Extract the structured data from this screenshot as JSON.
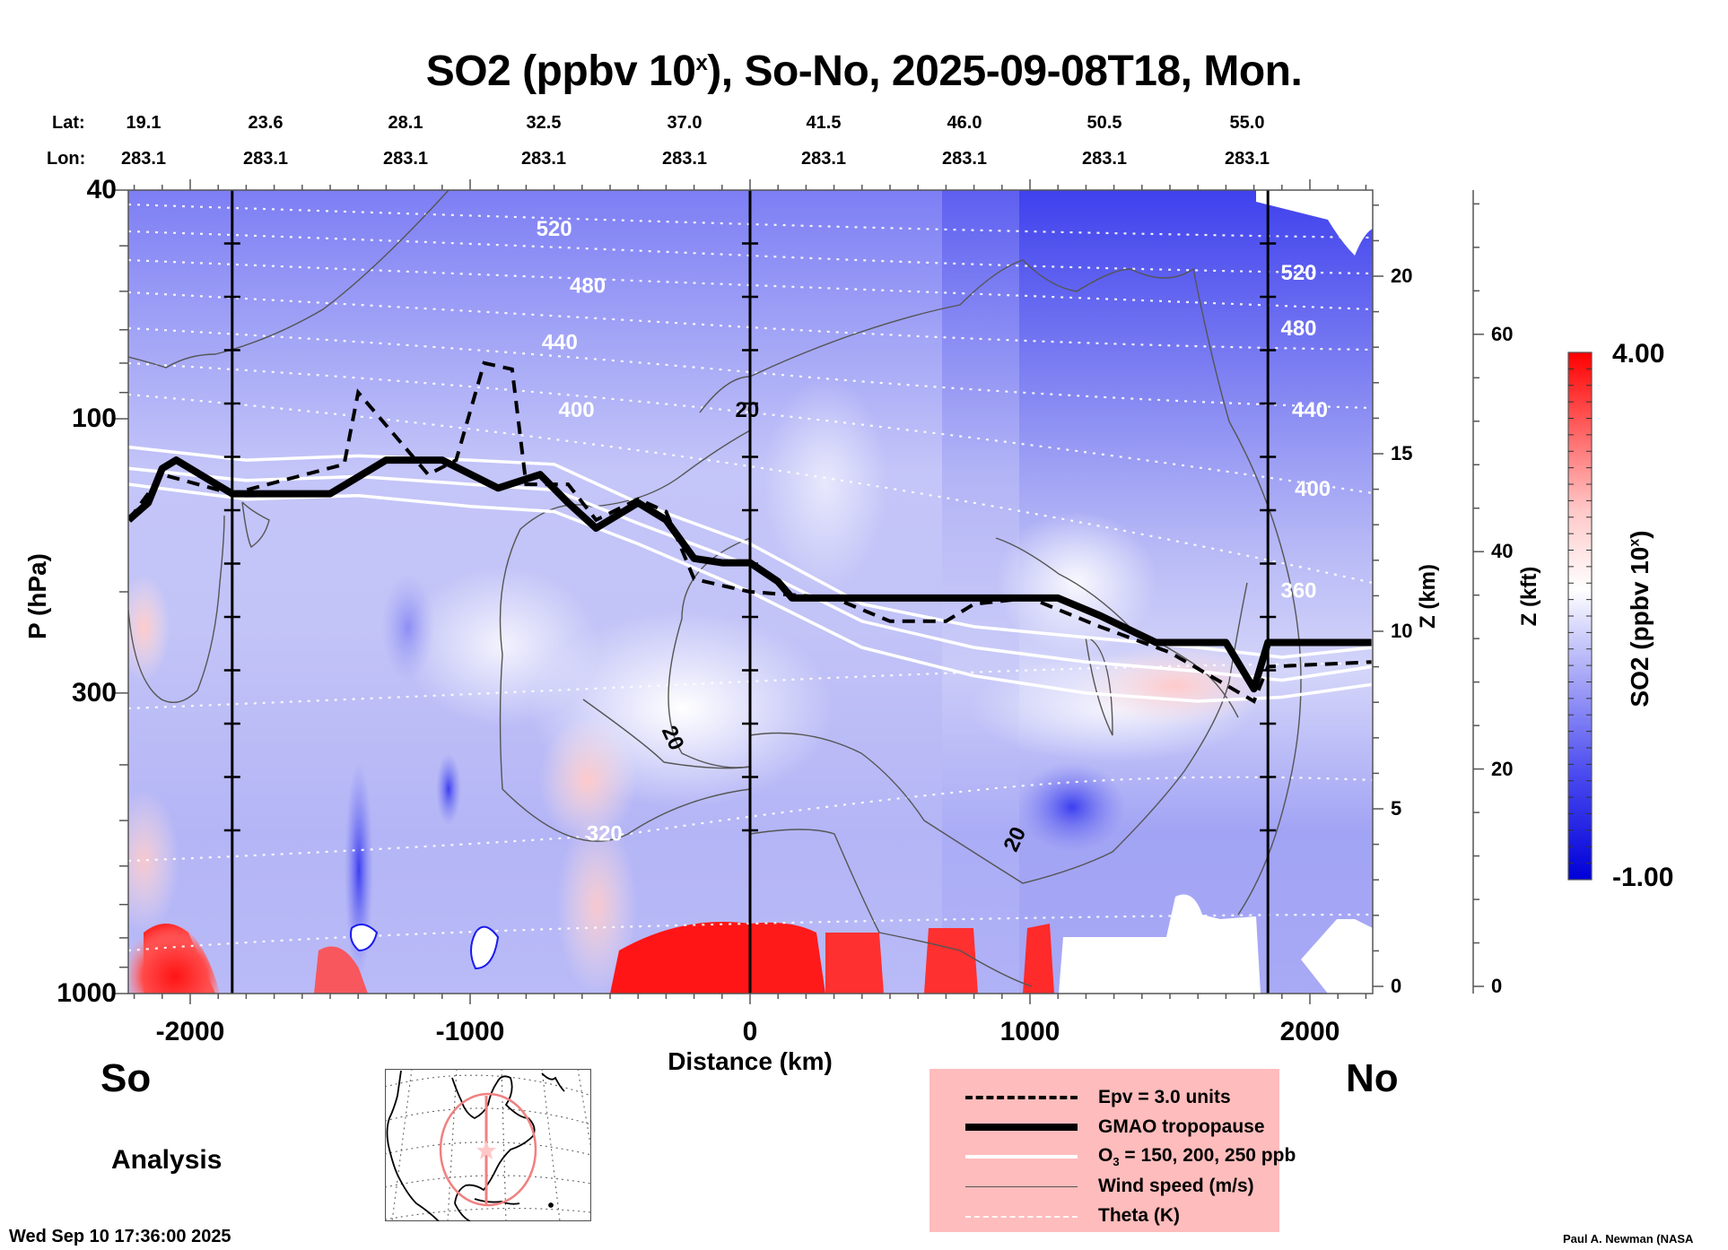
{
  "title": {
    "prefix": "SO2 (ppbv 10",
    "sup": "x",
    "suffix": "), So-No, 2025-09-08T18, Mon."
  },
  "lat_label": "Lat:",
  "lon_label": "Lon:",
  "lat_values": [
    "19.1",
    "23.6",
    "28.1",
    "32.5",
    "37.0",
    "41.5",
    "46.0",
    "50.5",
    "55.0"
  ],
  "lon_values": [
    "283.1",
    "283.1",
    "283.1",
    "283.1",
    "283.1",
    "283.1",
    "283.1",
    "283.1",
    "283.1"
  ],
  "left_end": "So",
  "right_end": "No",
  "analysis_label": "Analysis",
  "timestamp": "Wed Sep 10 17:36:00 2025",
  "credit": "Paul A. Newman (NASA",
  "legend": {
    "items": [
      {
        "label": "Epv = 3.0 units",
        "style": "dashed-black"
      },
      {
        "label": "GMAO tropopause",
        "style": "thick-black"
      },
      {
        "label_main": "O",
        "label_sub": "3",
        "label_rest": " = 150, 200, 250 ppb",
        "style": "white"
      },
      {
        "label": "Wind speed (m/s)",
        "style": "thin-gray"
      },
      {
        "label": "Theta (K)",
        "style": "dotted-white"
      }
    ]
  },
  "colors": {
    "legend_bg": "#ffbcbc",
    "high": "#ff0000",
    "mid": "#ffffff",
    "low": "#0000e0",
    "map_track": "#f08080"
  },
  "chart_data": {
    "type": "heatmap",
    "title": "SO2 (ppbv 10^x), So-No, 2025-09-08T18, Mon.",
    "xlabel": "Distance (km)",
    "ylabel": "P (hPa)",
    "y2label": "Z (km)",
    "y3label": "Z (kft)",
    "colorbar_label": {
      "prefix": "SO2 (ppbv 10",
      "sup": "x",
      "suffix": ")"
    },
    "xlim": [
      -2220,
      2220
    ],
    "ylim": [
      1000,
      40
    ],
    "yscale": "log",
    "x_ticks": [
      -2000,
      -1000,
      0,
      1000,
      2000
    ],
    "x_tick_labels": [
      "-2000",
      "-1000",
      "0",
      "1000",
      "2000"
    ],
    "y_ticks": [
      40,
      100,
      300,
      1000
    ],
    "y_tick_labels": [
      "40",
      "100",
      "300",
      "1000"
    ],
    "z_km_ticks": [
      0,
      5,
      10,
      15,
      20
    ],
    "z_km_tick_labels": [
      "0",
      "5",
      "10",
      "15",
      "20"
    ],
    "z_kft_ticks": [
      0,
      20,
      40,
      60
    ],
    "z_kft_tick_labels": [
      "0",
      "20",
      "40",
      "60"
    ],
    "colorbar": {
      "min": -1.0,
      "max": 4.0,
      "min_label": "-1.00",
      "max_label": "4.00",
      "levels": 32
    },
    "section_lines_km": [
      -1850,
      0,
      1850
    ],
    "theta_labels": [
      {
        "value": "520",
        "x": -700,
        "p": 47
      },
      {
        "value": "480",
        "x": -580,
        "p": 59
      },
      {
        "value": "440",
        "x": -680,
        "p": 74
      },
      {
        "value": "400",
        "x": -620,
        "p": 97
      },
      {
        "value": "520",
        "x": 1960,
        "p": 56
      },
      {
        "value": "480",
        "x": 1960,
        "p": 70
      },
      {
        "value": "440",
        "x": 2000,
        "p": 97
      },
      {
        "value": "400",
        "x": 2010,
        "p": 133
      },
      {
        "value": "360",
        "x": 1960,
        "p": 200
      },
      {
        "value": "320",
        "x": -520,
        "p": 530
      }
    ],
    "wind_labels": [
      {
        "value": "20",
        "x": -10,
        "p": 97
      },
      {
        "value": "20",
        "x": -280,
        "p": 360
      },
      {
        "value": "20",
        "x": 950,
        "p": 540
      }
    ],
    "tropopause_pressure_hpa": {
      "x": [
        -2220,
        -2150,
        -2100,
        -2050,
        -1850,
        -1800,
        -1500,
        -1300,
        -1100,
        -900,
        -750,
        -650,
        -550,
        -400,
        -300,
        -200,
        -100,
        0,
        100,
        150,
        1100,
        1250,
        1450,
        1700,
        1800,
        1850,
        2220
      ],
      "p": [
        150,
        140,
        122,
        118,
        135,
        135,
        135,
        118,
        118,
        132,
        125,
        140,
        155,
        140,
        150,
        175,
        178,
        178,
        192,
        205,
        205,
        220,
        245,
        245,
        295,
        245,
        245
      ]
    },
    "epv3_pressure_hpa": {
      "x": [
        -2220,
        -2100,
        -1850,
        -1450,
        -1400,
        -1150,
        -1050,
        -950,
        -850,
        -800,
        -650,
        -550,
        -400,
        -300,
        -200,
        -100,
        0,
        300,
        500,
        700,
        800,
        1000,
        1250,
        1500,
        1800,
        1850,
        2220
      ],
      "p": [
        150,
        125,
        135,
        120,
        90,
        125,
        118,
        80,
        82,
        130,
        130,
        150,
        138,
        145,
        190,
        195,
        200,
        205,
        225,
        225,
        210,
        205,
        230,
        255,
        310,
        270,
        265
      ]
    },
    "o3_contours_hpa": [
      {
        "x": [
          -2220,
          -1800,
          -1400,
          -1000,
          -700,
          -400,
          0,
          400,
          800,
          1200,
          1600,
          1900,
          2220
        ],
        "p": [
          112,
          118,
          116,
          118,
          120,
          140,
          165,
          210,
          230,
          240,
          250,
          260,
          250
        ]
      },
      {
        "x": [
          -2220,
          -1800,
          -1400,
          -1000,
          -700,
          -400,
          0,
          400,
          800,
          1200,
          1600,
          1900,
          2220
        ],
        "p": [
          122,
          128,
          126,
          130,
          133,
          152,
          180,
          225,
          250,
          265,
          275,
          285,
          270
        ]
      },
      {
        "x": [
          -2220,
          -1800,
          -1400,
          -1000,
          -700,
          -400,
          0,
          400,
          800,
          1200,
          1600,
          1900,
          2220
        ],
        "p": [
          130,
          138,
          136,
          142,
          145,
          165,
          200,
          250,
          280,
          300,
          310,
          305,
          290
        ]
      }
    ]
  }
}
